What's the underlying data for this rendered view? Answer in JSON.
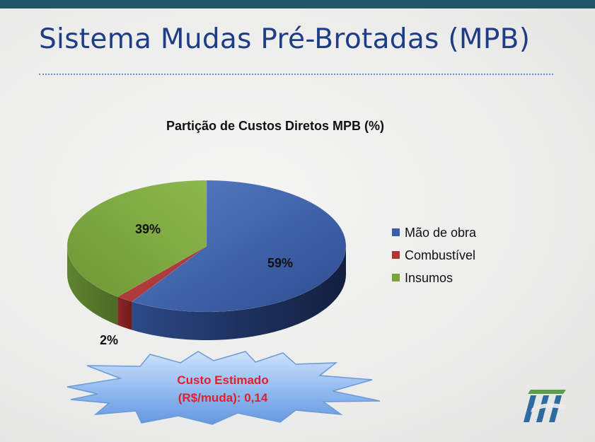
{
  "slide": {
    "title": "Sistema Mudas Pré-Brotadas (MPB)"
  },
  "chart_data": {
    "type": "pie",
    "title": "Partição de Custos Diretos MPB (%)",
    "categories": [
      "Mão de obra",
      "Combustível",
      "Insumos"
    ],
    "values": [
      59,
      2,
      39
    ],
    "data_labels": [
      "59%",
      "2%",
      "39%"
    ],
    "colors": [
      "#3b5ea8",
      "#b03535",
      "#7aa33c"
    ],
    "legend_position": "right",
    "style": "3d"
  },
  "callout": {
    "line1": "Custo Estimado",
    "line2": "(R$/muda): 0,14",
    "text_color": "#e0202a"
  },
  "colors": {
    "accent_bar": "#1f5566",
    "title": "#1f3c86"
  }
}
